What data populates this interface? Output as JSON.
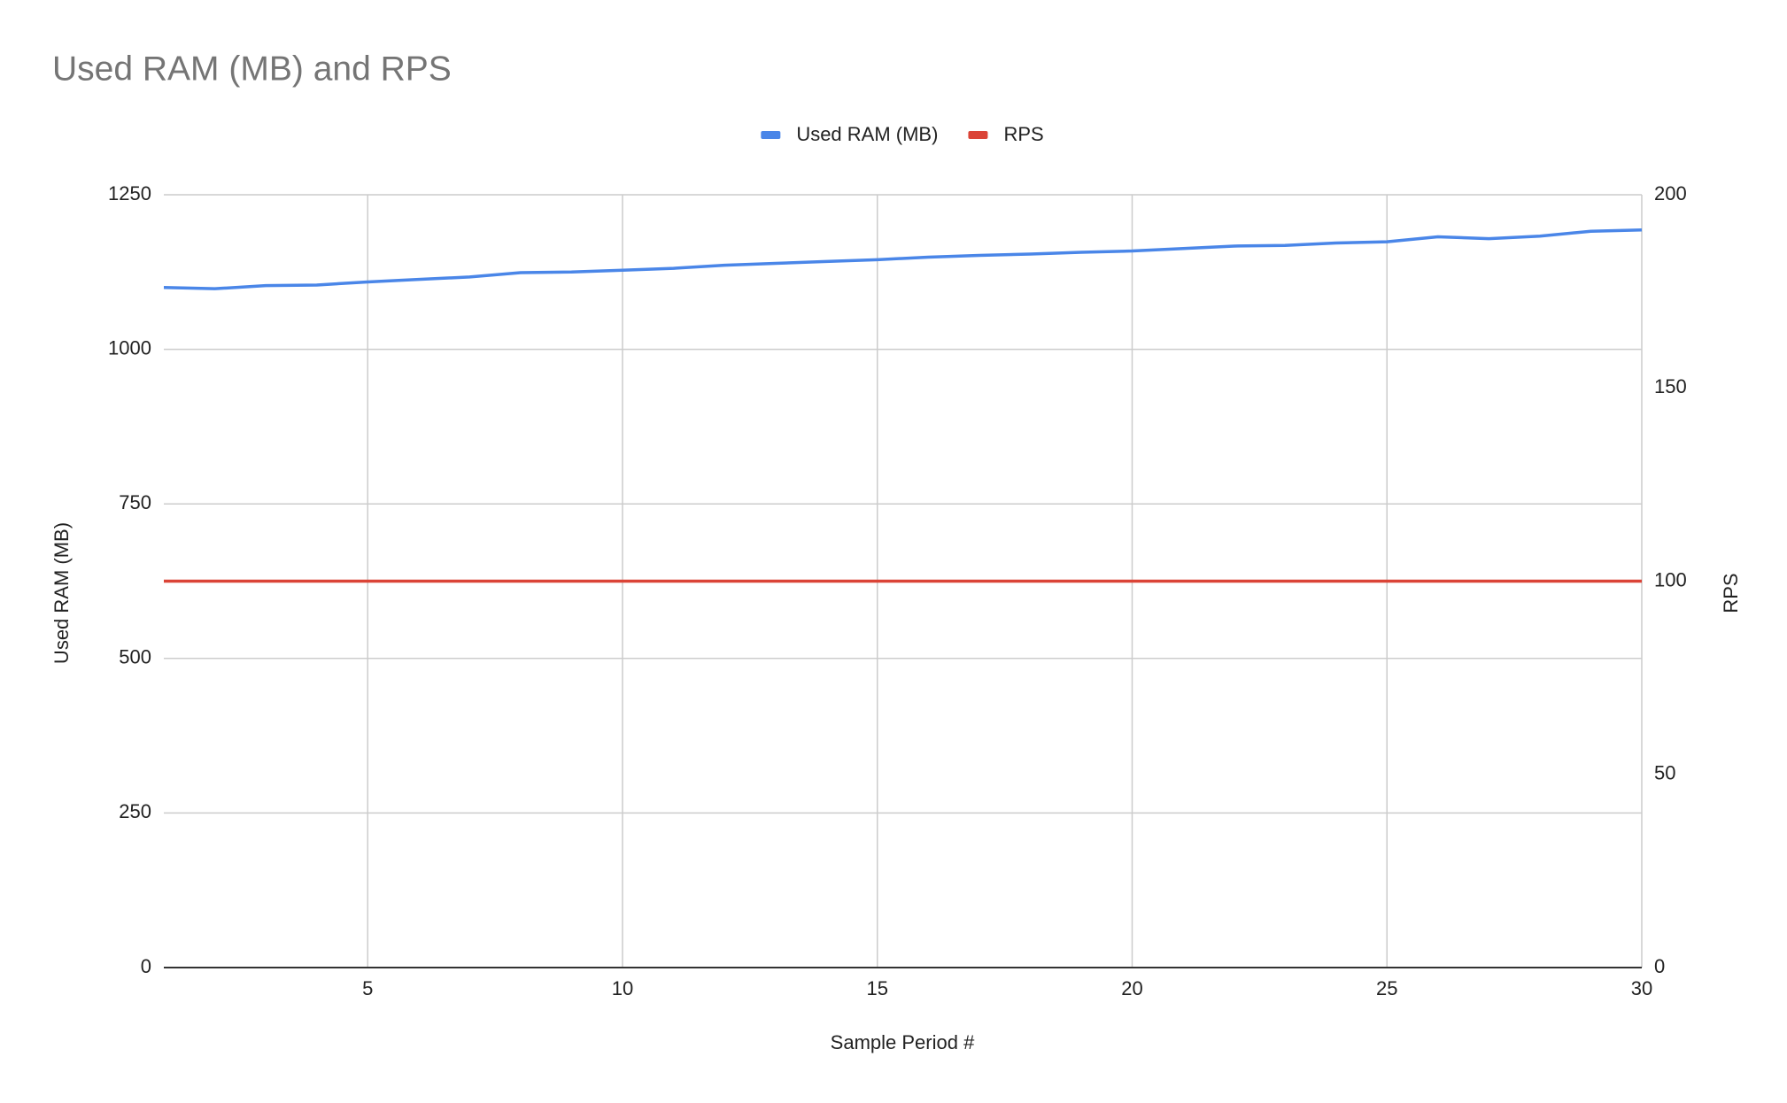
{
  "chart_data": {
    "type": "line",
    "title": "Used RAM (MB) and RPS",
    "x_label": "Sample Period #",
    "y_label": "Used RAM (MB)",
    "y2_label": "RPS",
    "x": [
      1,
      2,
      3,
      4,
      5,
      6,
      7,
      8,
      9,
      10,
      11,
      12,
      13,
      14,
      15,
      16,
      17,
      18,
      19,
      20,
      21,
      22,
      23,
      24,
      25,
      26,
      27,
      28,
      29,
      30
    ],
    "series": [
      {
        "name": "Used RAM (MB)",
        "color": "#4a86e8",
        "values": [
          1100,
          1098,
          1103,
          1104,
          1109,
          1113,
          1117,
          1124,
          1125,
          1128,
          1131,
          1136,
          1139,
          1142,
          1145,
          1149,
          1152,
          1154,
          1157,
          1159,
          1163,
          1167,
          1168,
          1172,
          1174,
          1182,
          1179,
          1183,
          1191,
          1193
        ]
      },
      {
        "name": "RPS",
        "color": "#db4437",
        "axis": "y2",
        "values": [
          100,
          100,
          100,
          100,
          100,
          100,
          100,
          100,
          100,
          100,
          100,
          100,
          100,
          100,
          100,
          100,
          100,
          100,
          100,
          100,
          100,
          100,
          100,
          100,
          100,
          100,
          100,
          100,
          100,
          100
        ]
      }
    ],
    "xlim": [
      1,
      30
    ],
    "xticks": [
      5,
      10,
      15,
      20,
      25,
      30
    ],
    "ylim": [
      0,
      1250
    ],
    "yticks": [
      0,
      250,
      500,
      750,
      1000,
      1250
    ],
    "y2lim": [
      0,
      200
    ],
    "y2ticks": [
      0,
      50,
      100,
      150,
      200
    ],
    "grid": true,
    "legend": "top"
  }
}
